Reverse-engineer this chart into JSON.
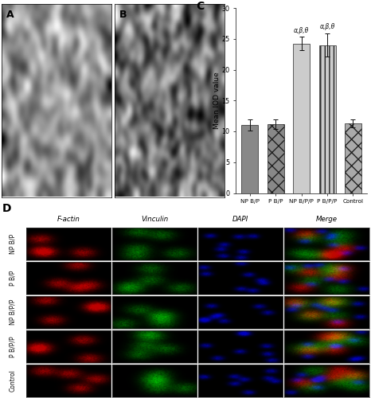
{
  "categories": [
    "NP B/P",
    "P B/P",
    "NP B/P/P",
    "P B/P/P",
    "Control"
  ],
  "values": [
    11.0,
    11.2,
    24.2,
    24.0,
    11.3
  ],
  "errors": [
    0.9,
    0.8,
    1.1,
    1.9,
    0.7
  ],
  "bar_fill_colors": [
    "#888888",
    "#888888",
    "#cccccc",
    "#cccccc",
    "#aaaaaa"
  ],
  "hatch_patterns": [
    "",
    "xx",
    "===",
    "|||",
    "xx"
  ],
  "annotations": [
    "",
    "",
    "α,β,θ",
    "α,β,θ",
    ""
  ],
  "ylabel": "Mean IOD value",
  "ylim": [
    0,
    30
  ],
  "yticks": [
    0,
    5,
    10,
    15,
    20,
    25,
    30
  ],
  "panel_label_C": "C",
  "panel_label_A": "A",
  "panel_label_B": "B",
  "panel_label_D": "D",
  "row_labels": [
    "NP B/P",
    "P B/P",
    "NP B/P/P",
    "P B/P/P",
    "Control"
  ],
  "col_labels": [
    "F-actin",
    "Vinculin",
    "DAPI",
    "Merge"
  ],
  "bar_width": 0.65,
  "fig_bg": "#ffffff",
  "panel_bg_A": "#a0a0a0",
  "panel_bg_B": "#909090",
  "panel_C_bg": "#ffffff",
  "cell_bg_factin": [
    "#0a0000",
    "#0a0000",
    "#080000",
    "#0a0000",
    "#080000"
  ],
  "cell_bg_vinculin": [
    "#000a00",
    "#000a00",
    "#000800",
    "#000a00",
    "#000800"
  ],
  "cell_bg_dapi": [
    "#00000a",
    "#00000a",
    "#000008",
    "#00000a",
    "#000008"
  ],
  "cell_bg_merge": [
    "#050300",
    "#050300",
    "#040200",
    "#050300",
    "#040200"
  ]
}
